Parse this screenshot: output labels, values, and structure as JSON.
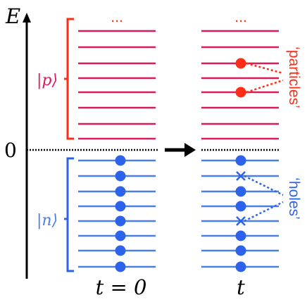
{
  "axis": {
    "energy_label": "E",
    "fermi_label": "0"
  },
  "brackets": {
    "particle_space_label": "|p⟩",
    "hole_space_label": "|n⟩"
  },
  "panels": {
    "left_time_label": "t = 0",
    "right_time_label": "t",
    "left_top_ellipsis": "...",
    "right_top_ellipsis": "..."
  },
  "annotations": {
    "particles_label": "‘particles’",
    "holes_label": "‘holes’"
  },
  "levels": {
    "upper_count": 8,
    "lower_count": 8,
    "left_occupied_lower": [
      1,
      1,
      1,
      1,
      1,
      1,
      1,
      1
    ],
    "right_occupied_lower": [
      1,
      0,
      1,
      1,
      0,
      1,
      1,
      1
    ],
    "right_occupied_upper": [
      0,
      0,
      1,
      0,
      1,
      0,
      0,
      0
    ]
  },
  "colors": {
    "particle_levels": "#d91b5c",
    "hole_levels": "#4a7fe5",
    "particles": "#ff2d16",
    "holes": "#2d63ea",
    "axis": "#000000",
    "fermi_line": "#000000",
    "arrow": "#000000"
  },
  "icons": {
    "transition_arrow": "right-arrow-icon"
  }
}
